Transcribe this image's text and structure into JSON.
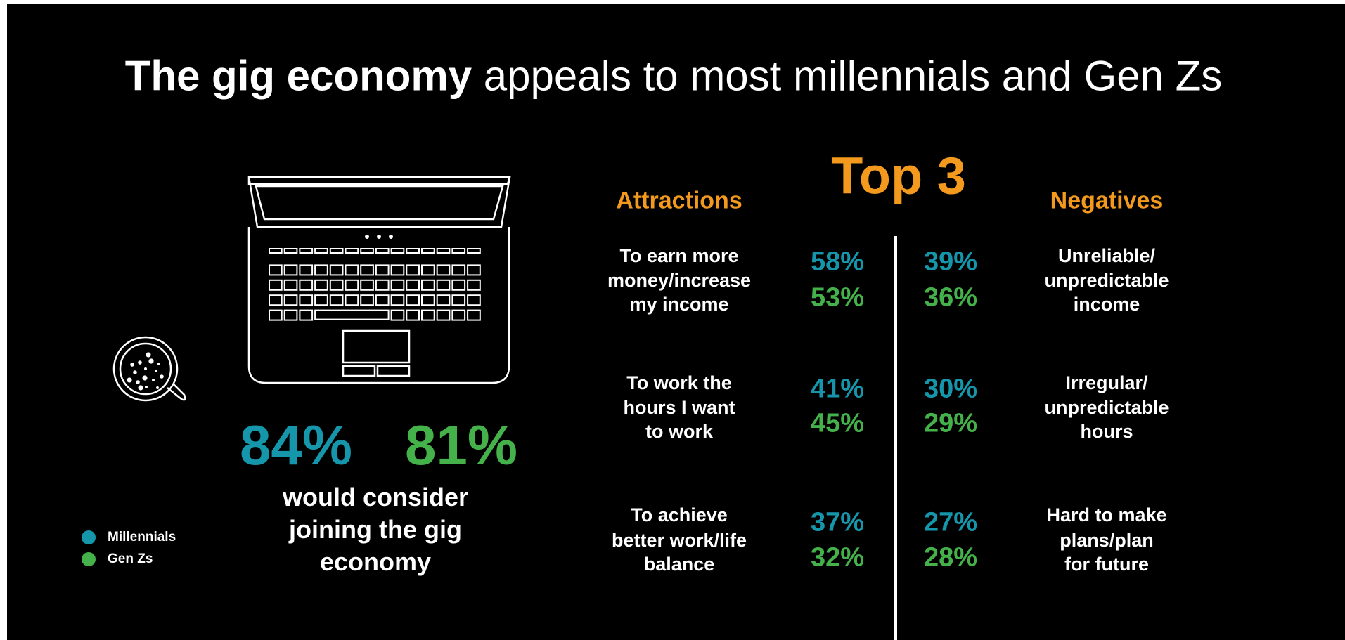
{
  "title": {
    "bold": "The gig economy",
    "rest": "appeals to most millennials and Gen Zs"
  },
  "headline": {
    "millennials": "84%",
    "gen_zs": "81%",
    "caption_lines": [
      "would consider",
      "joining the gig",
      "economy"
    ]
  },
  "legend": [
    "Millennials",
    "Gen Zs"
  ],
  "top3": "Top 3",
  "attractions": {
    "title": "Attractions",
    "items": [
      {
        "lines": [
          "To earn more",
          "money/increase",
          "my income"
        ],
        "millennials": "58%",
        "gen_zs": "53%"
      },
      {
        "lines": [
          "To work the",
          "hours I want",
          "to work"
        ],
        "millennials": "41%",
        "gen_zs": "45%"
      },
      {
        "lines": [
          "To achieve",
          "better work/life",
          "balance"
        ],
        "millennials": "37%",
        "gen_zs": "32%"
      }
    ]
  },
  "negatives": {
    "title": "Negatives",
    "items": [
      {
        "lines": [
          "Unreliable/",
          "unpredictable",
          "income"
        ],
        "millennials": "39%",
        "gen_zs": "36%"
      },
      {
        "lines": [
          "Irregular/",
          "unpredictable",
          "hours"
        ],
        "millennials": "30%",
        "gen_zs": "29%"
      },
      {
        "lines": [
          "Hard to make",
          "plans/plan",
          "for future"
        ],
        "millennials": "27%",
        "gen_zs": "28%"
      }
    ]
  }
}
